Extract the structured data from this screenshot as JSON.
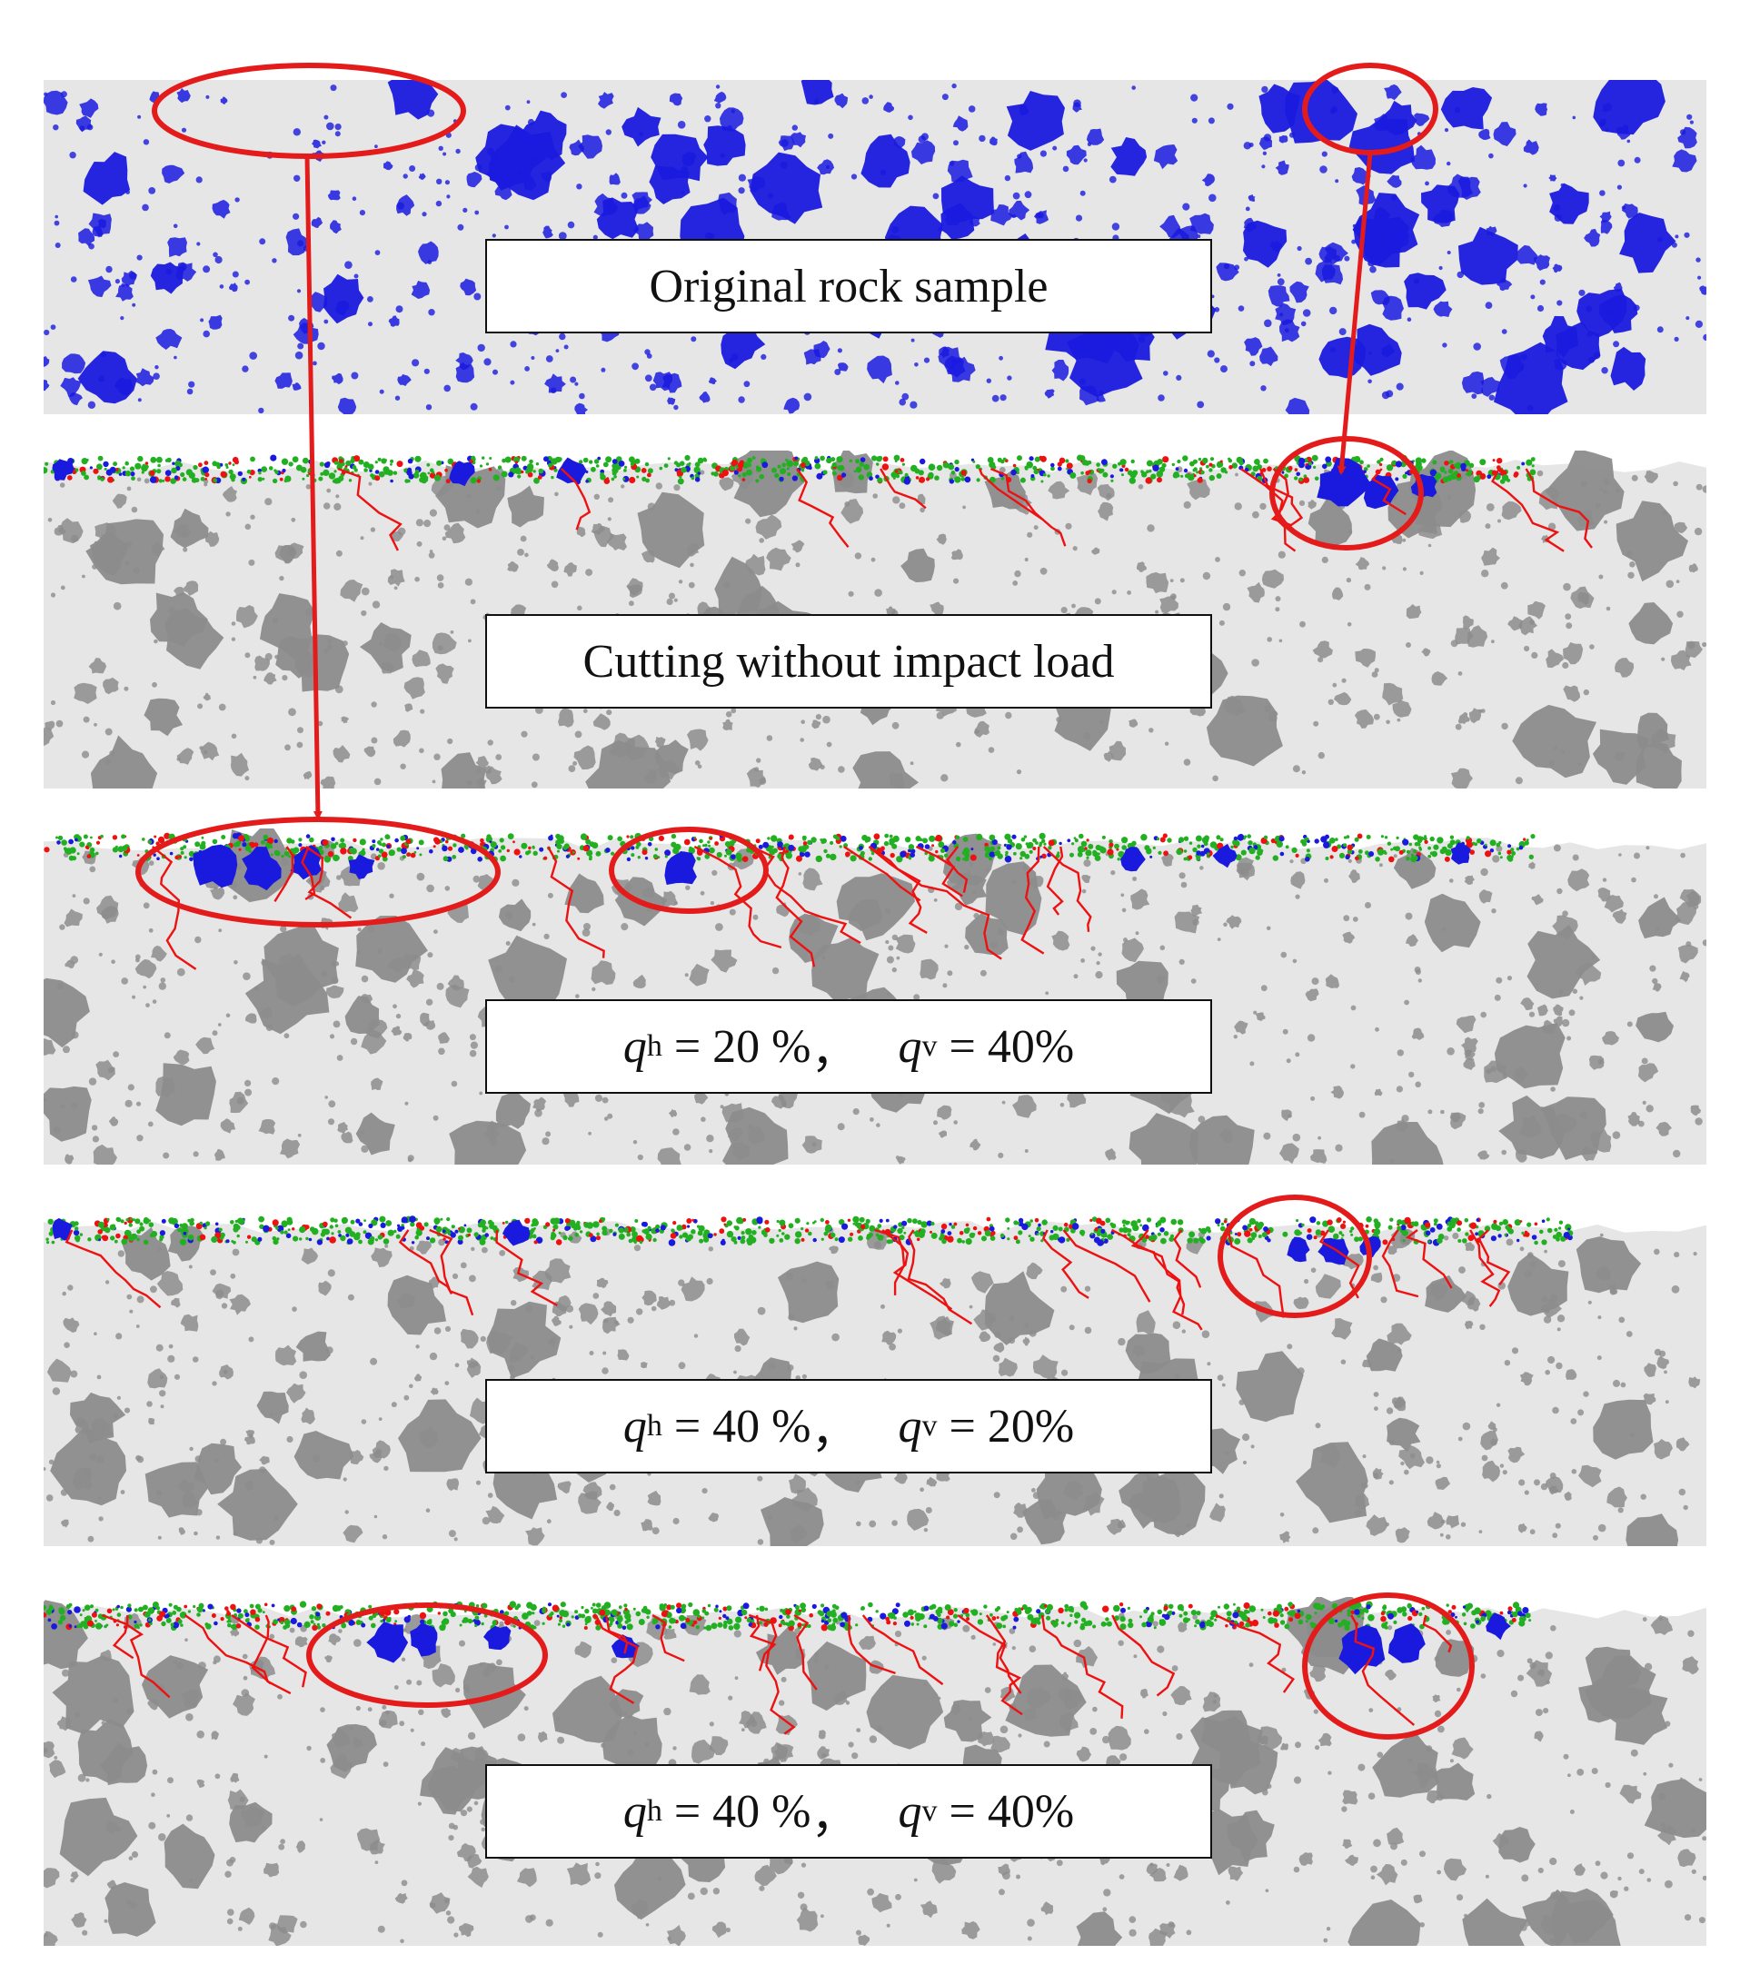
{
  "figure": {
    "panels": [
      {
        "id": "original",
        "label": "Original rock sample"
      },
      {
        "id": "no-impact",
        "label": "Cutting without impact load"
      },
      {
        "id": "q20-40",
        "q_h": "20 %",
        "q_v": "40%",
        "sep": "，"
      },
      {
        "id": "q40-20",
        "q_h": "40 %",
        "q_v": "20%",
        "sep": "，"
      },
      {
        "id": "q40-40",
        "q_h": "40 %",
        "q_v": "40%",
        "sep": "，"
      }
    ],
    "symbols": {
      "q": "q",
      "h": "h",
      "v": "v",
      "eq": " = "
    },
    "colors": {
      "matrix": "#e6e6e6",
      "grain_original": "#1a1adf",
      "grain_gray": "#8c8c8c",
      "crack": "#ee1111",
      "debris": "#22b022",
      "annotation": "#e31b1b"
    }
  }
}
